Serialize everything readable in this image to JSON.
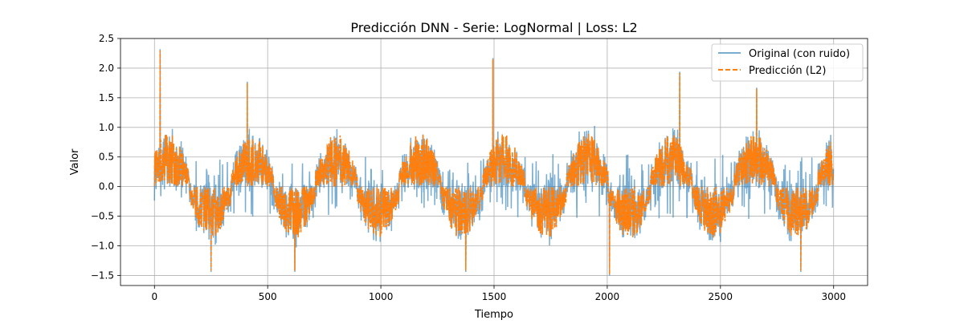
{
  "chart_data": {
    "type": "line",
    "title": "Predicción DNN - Serie: LogNormal | Loss: L2",
    "xlabel": "Tiempo",
    "ylabel": "Valor",
    "xlim": [
      -150,
      3150
    ],
    "ylim": [
      -1.67,
      2.5
    ],
    "xticks": [
      0,
      500,
      1000,
      1500,
      2000,
      2500,
      3000
    ],
    "xtick_labels": [
      "0",
      "500",
      "1000",
      "1500",
      "2000",
      "2500",
      "3000"
    ],
    "yticks": [
      -1.5,
      -1.0,
      -0.5,
      0.0,
      0.5,
      1.0,
      1.5,
      2.0,
      2.5
    ],
    "ytick_labels": [
      "−1.5",
      "−1.0",
      "−0.5",
      "0.0",
      "0.5",
      "1.0",
      "1.5",
      "2.0",
      "2.5"
    ],
    "grid": true,
    "legend_position": "top-right",
    "n_points": 3000,
    "envelope": {
      "period": 370,
      "mean_amplitude": 0.62,
      "peaks": [
        {
          "x": 25,
          "y": 2.3
        },
        {
          "x": 410,
          "y": 1.75
        },
        {
          "x": 1495,
          "y": 2.15
        },
        {
          "x": 2320,
          "y": 1.92
        },
        {
          "x": 2660,
          "y": 1.65
        }
      ],
      "troughs": [
        {
          "x": 250,
          "y": -1.42
        },
        {
          "x": 620,
          "y": -1.42
        },
        {
          "x": 1375,
          "y": -1.42
        },
        {
          "x": 2010,
          "y": -1.48
        },
        {
          "x": 2855,
          "y": -1.42
        }
      ]
    },
    "series": [
      {
        "name": "Original (con ruido)",
        "color": "#1f77b4",
        "style": "solid",
        "alpha": 0.6
      },
      {
        "name": "Predicción (L2)",
        "color": "#ff7f0e",
        "style": "dashed"
      }
    ]
  }
}
